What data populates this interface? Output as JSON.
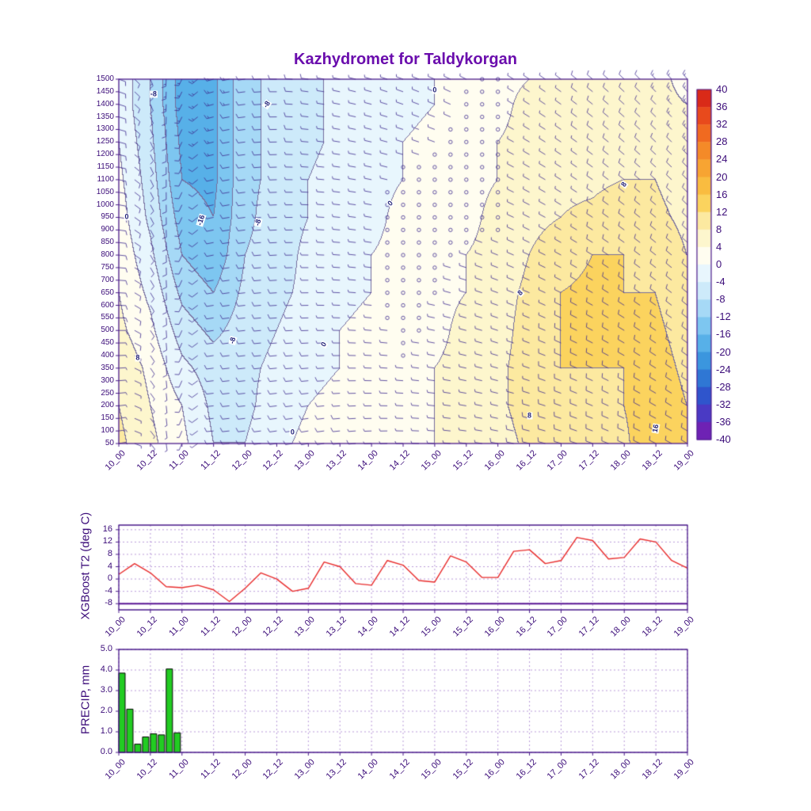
{
  "title": "Kazhydromet for Taldykorgan",
  "style": {
    "axis_color": "#4a1a8a",
    "grid_color": "#9b6fc9",
    "tick_label_color": "#3c0d7a",
    "title_color": "#6a0dad",
    "barb_color": "#3d2b8f",
    "contour_line_color": "#766e9e"
  },
  "chart_data": [
    {
      "type": "heatmap",
      "name": "temperature-height-time-cross-section",
      "title": "Kazhydromet for Taldykorgan",
      "x_labels": [
        "10_00",
        "10_12",
        "11_00",
        "11_12",
        "12_00",
        "12_12",
        "13_00",
        "13_12",
        "14_00",
        "14_12",
        "15_00",
        "15_12",
        "16_00",
        "16_12",
        "17_00",
        "17_12",
        "18_00",
        "18_12",
        "19_00"
      ],
      "y_ticks": [
        1500,
        1450,
        1400,
        1350,
        1300,
        1250,
        1200,
        1150,
        1100,
        1050,
        1000,
        950,
        900,
        850,
        800,
        750,
        700,
        650,
        600,
        550,
        500,
        450,
        400,
        350,
        300,
        250,
        200,
        150,
        100,
        50
      ],
      "ylim": [
        50,
        1500
      ],
      "colorbar_ticks": [
        40,
        36,
        32,
        28,
        24,
        20,
        16,
        12,
        8,
        4,
        0,
        -4,
        -8,
        -12,
        -16,
        -20,
        -24,
        -28,
        -32,
        -36,
        -40
      ],
      "bin_start": -44,
      "bin_size": 4,
      "bin_colors": [
        "#7a15a8",
        "#6e22b4",
        "#4a3ac4",
        "#2f55cc",
        "#2f77d4",
        "#3b96de",
        "#57b0e8",
        "#7dc6f0",
        "#a6d9f6",
        "#cdeafa",
        "#e8f6fd",
        "#fffdf0",
        "#fdf6cd",
        "#fce9a0",
        "#fbd35e",
        "#f9bc40",
        "#f7a432",
        "#f48a28",
        "#f06a20",
        "#e84a1c",
        "#d92a18",
        "#c31212"
      ],
      "levels": [
        50,
        200,
        350,
        500,
        650,
        800,
        950,
        1100,
        1250,
        1400,
        1500
      ],
      "temps_by_level": [
        [
          9,
          5,
          1,
          -4,
          -4,
          -1,
          1,
          2,
          3,
          3,
          4,
          5,
          6,
          9,
          10,
          10,
          11,
          16,
          12
        ],
        [
          8,
          4,
          0,
          -5,
          -5,
          -2,
          0,
          1,
          2,
          3,
          4,
          5,
          7,
          10,
          11,
          11,
          12,
          15,
          12
        ],
        [
          7,
          3,
          -3,
          -6,
          -5,
          -3,
          -1,
          0,
          2,
          3,
          4,
          5,
          7,
          10,
          12,
          12,
          12,
          14,
          11
        ],
        [
          5,
          1,
          -6,
          -9,
          -6,
          -4,
          -2,
          0,
          1,
          2,
          3,
          5,
          6,
          10,
          12,
          13,
          12,
          13,
          10
        ],
        [
          4,
          -1,
          -9,
          -12,
          -7,
          -5,
          -3,
          -1,
          0,
          2,
          3,
          4,
          6,
          9,
          12,
          13,
          12,
          12,
          9
        ],
        [
          3,
          -3,
          -12,
          -15,
          -8,
          -6,
          -3,
          -1,
          0,
          1,
          2,
          4,
          5,
          8,
          10,
          12,
          12,
          11,
          8
        ],
        [
          2,
          -5,
          -14,
          -16,
          -9,
          -6,
          -4,
          -2,
          -1,
          1,
          2,
          3,
          5,
          7,
          8,
          9,
          11,
          9,
          7
        ],
        [
          1,
          -6,
          -16,
          -17,
          -9,
          -7,
          -4,
          -2,
          -1,
          0,
          1,
          3,
          4,
          6,
          7,
          7,
          8,
          8,
          6
        ],
        [
          0,
          -7,
          -17,
          -17,
          -9,
          -7,
          -5,
          -3,
          -1,
          0,
          1,
          2,
          4,
          5,
          6,
          6,
          7,
          7,
          5
        ],
        [
          -1,
          -8,
          -18,
          -17,
          -9,
          -7,
          -5,
          -3,
          -2,
          -1,
          0,
          2,
          3,
          5,
          5,
          6,
          6,
          5,
          4
        ],
        [
          -1,
          -8,
          -18,
          -17,
          -9,
          -7,
          -5,
          -3,
          -2,
          -1,
          0,
          2,
          3,
          4,
          5,
          5,
          6,
          5,
          3
        ]
      ],
      "wind": {
        "t_nodes": [
          0,
          3,
          6,
          9,
          12,
          15,
          18
        ],
        "level_nodes": [
          50,
          500,
          1000,
          1500
        ],
        "dir": [
          [
            80,
            265,
            260,
            270,
            280,
            290,
            300
          ],
          [
            90,
            262,
            268,
            278,
            288,
            298,
            308
          ],
          [
            100,
            258,
            272,
            284,
            294,
            304,
            314
          ],
          [
            110,
            255,
            278,
            290,
            300,
            310,
            320
          ]
        ],
        "spd": [
          [
            6,
            8,
            10,
            6,
            8,
            10,
            12
          ],
          [
            8,
            10,
            8,
            2,
            6,
            10,
            10
          ],
          [
            10,
            12,
            6,
            2,
            2,
            8,
            12
          ],
          [
            12,
            15,
            8,
            5,
            2,
            10,
            15
          ]
        ]
      },
      "contour_labels": [
        {
          "text": "-8",
          "t": 1.1,
          "level": 1440,
          "rot": 0
        },
        {
          "text": "0",
          "t": 0.25,
          "level": 950,
          "rot": 0
        },
        {
          "text": "8",
          "t": 0.6,
          "level": 390,
          "rot": 0
        },
        {
          "text": "-16",
          "t": 2.6,
          "level": 940,
          "rot": -72
        },
        {
          "text": "-8",
          "t": 4.4,
          "level": 930,
          "rot": -75
        },
        {
          "text": "-8",
          "t": 3.6,
          "level": 460,
          "rot": -75
        },
        {
          "text": "-8",
          "t": 4.7,
          "level": 1400,
          "rot": -55
        },
        {
          "text": "0",
          "t": 6.5,
          "level": 445,
          "rot": -60
        },
        {
          "text": "0",
          "t": 5.5,
          "level": 95,
          "rot": 0
        },
        {
          "text": "0",
          "t": 8.6,
          "level": 1005,
          "rot": -45
        },
        {
          "text": "0",
          "t": 10.0,
          "level": 1455,
          "rot": 0
        },
        {
          "text": "8",
          "t": 12.7,
          "level": 650,
          "rot": -45
        },
        {
          "text": "8",
          "t": 13.0,
          "level": 160,
          "rot": 0
        },
        {
          "text": "8",
          "t": 16.0,
          "level": 1080,
          "rot": -55
        },
        {
          "text": "16",
          "t": 17.0,
          "level": 110,
          "rot": -80
        }
      ]
    },
    {
      "type": "line",
      "name": "xgboost-t2-timeseries",
      "ylabel": "XGBoost T2 (deg C)",
      "x_labels": [
        "10_00",
        "10_12",
        "11_00",
        "11_12",
        "12_00",
        "12_12",
        "13_00",
        "13_12",
        "14_00",
        "14_12",
        "15_00",
        "15_12",
        "16_00",
        "16_12",
        "17_00",
        "17_12",
        "18_00",
        "18_12",
        "19_00"
      ],
      "dt_hours": 6,
      "values": [
        1.5,
        5.0,
        2.0,
        -2.5,
        -2.8,
        -2.0,
        -3.5,
        -7.3,
        -3.0,
        2.0,
        0.0,
        -4.0,
        -3.0,
        5.5,
        4.0,
        -1.5,
        -2.0,
        6.0,
        4.5,
        -0.5,
        -1.0,
        7.5,
        5.5,
        0.5,
        0.5,
        9.0,
        9.5,
        5.0,
        6.0,
        13.5,
        12.5,
        6.5,
        7.0,
        13.0,
        12.0,
        6.0,
        3.5
      ],
      "y_ticks": [
        16,
        12,
        8,
        4,
        0,
        -4,
        -8
      ],
      "ylim": [
        -10,
        17.5
      ],
      "baseline": -8,
      "line_color": "#e82c2c"
    },
    {
      "type": "bar",
      "name": "precip-timeseries",
      "ylabel": "PRECIP, mm",
      "x_labels": [
        "10_00",
        "10_12",
        "11_00",
        "11_12",
        "12_00",
        "12_12",
        "13_00",
        "13_12",
        "14_00",
        "14_12",
        "15_00",
        "15_12",
        "16_00",
        "16_12",
        "17_00",
        "17_12",
        "18_00",
        "18_12",
        "19_00"
      ],
      "hours": [
        0,
        3,
        6,
        9,
        12,
        15,
        18,
        21
      ],
      "values": [
        3.85,
        2.1,
        0.4,
        0.75,
        0.9,
        0.85,
        4.05,
        0.95
      ],
      "y_ticks": [
        "0.0",
        "1.0",
        "2.0",
        "3.0",
        "4.0",
        "5.0"
      ],
      "ylim": [
        0,
        5
      ],
      "bar_color": "#22cc22",
      "bar_edge": "#000000"
    }
  ]
}
